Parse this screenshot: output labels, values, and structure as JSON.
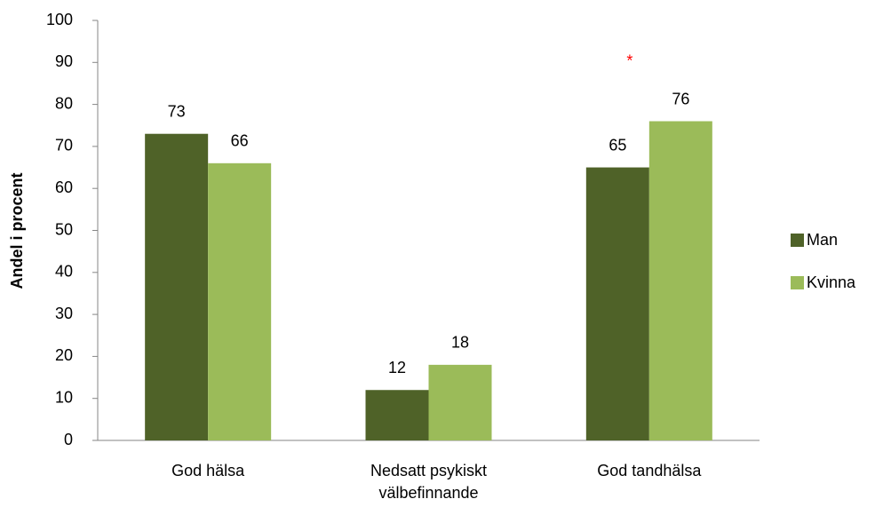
{
  "chart_data": {
    "type": "bar",
    "ylabel": "Andel i procent",
    "categories": [
      "God hälsa",
      "Nedsatt psykiskt välbefinnande",
      "God tandhälsa"
    ],
    "series": [
      {
        "name": "Man",
        "color": "#4f6228",
        "values": [
          73,
          12,
          65
        ]
      },
      {
        "name": "Kvinna",
        "color": "#9bbb59",
        "values": [
          66,
          18,
          76
        ]
      }
    ],
    "ylim": [
      0,
      100
    ],
    "yticks": [
      0,
      10,
      20,
      30,
      40,
      50,
      60,
      70,
      80,
      90,
      100
    ],
    "legend": "right",
    "annotations": [
      {
        "text": "*",
        "category": 2,
        "y": 91,
        "color": "#ff0000"
      }
    ]
  }
}
